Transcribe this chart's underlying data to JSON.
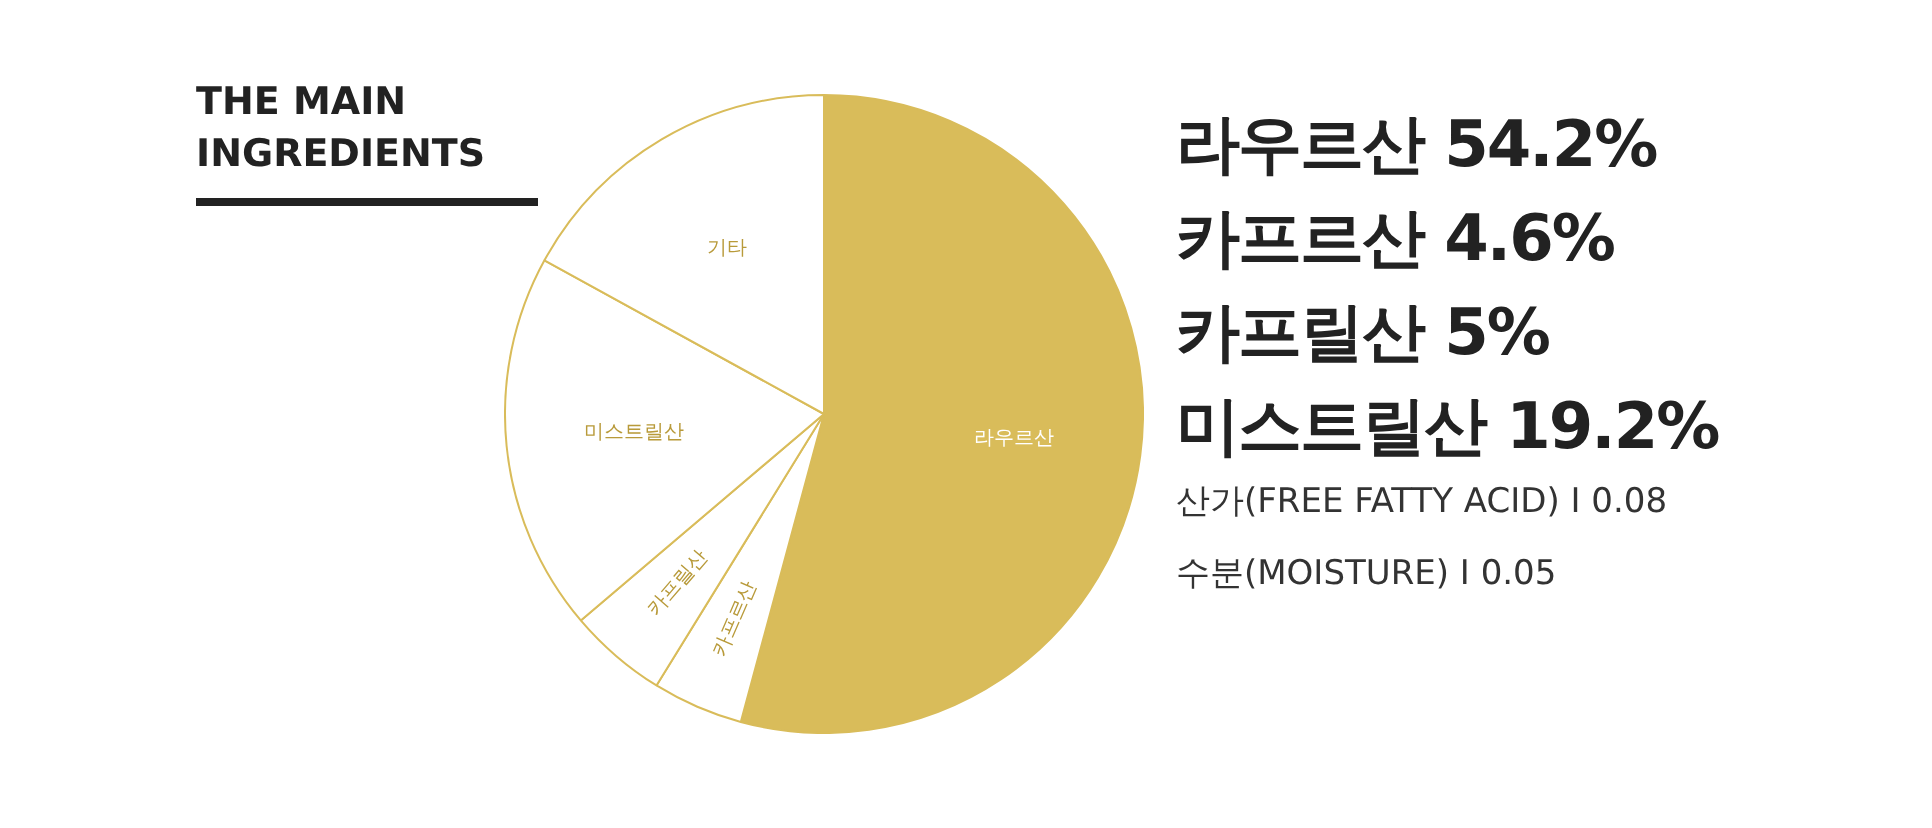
{
  "chart_data": {
    "type": "pie",
    "title": "THE MAIN INGREDIENTS",
    "categories": [
      "라우르산",
      "카프르산",
      "카프릴산",
      "미스트릴산",
      "기타"
    ],
    "values": [
      54.2,
      4.6,
      5,
      19.2,
      17
    ],
    "colors": [
      "#d9bc5a",
      "#ffffff",
      "#ffffff",
      "#ffffff",
      "#ffffff"
    ],
    "annotations": [
      "라우르산 54.2%",
      "카프르산 4.6%",
      "카프릴산 5%",
      "미스트릴산 19.2%",
      "산가(FREE FATTY ACID) I 0.08",
      "수분(MOISTURE) I 0.05"
    ],
    "legend": false
  }
}
